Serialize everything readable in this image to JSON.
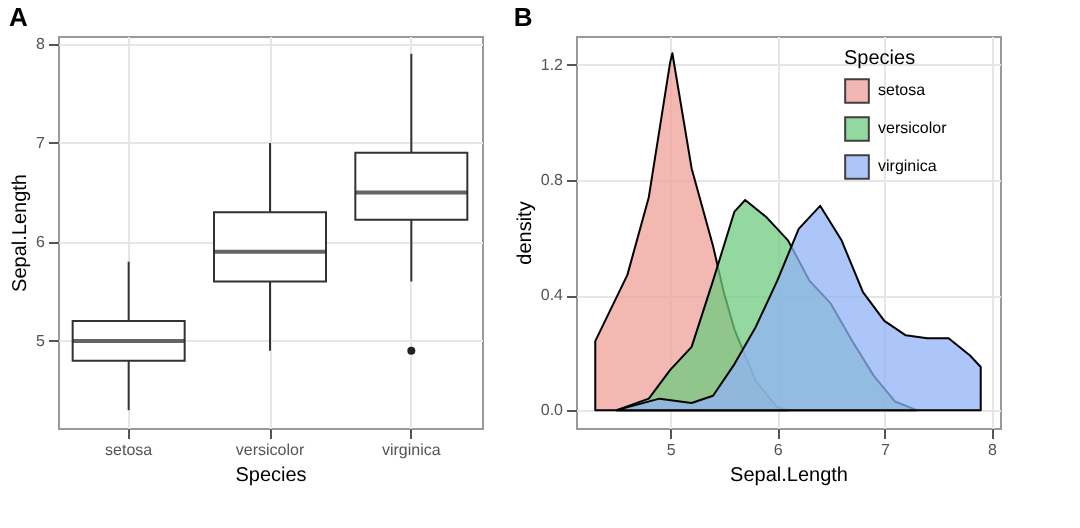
{
  "chart_data": [
    {
      "type": "box",
      "title": "A",
      "xlabel": "Species",
      "ylabel": "Sepal.Length",
      "categories": [
        "setosa",
        "versicolor",
        "virginica"
      ],
      "boxes": [
        {
          "low": 4.3,
          "q1": 4.8,
          "median": 5.0,
          "q3": 5.2,
          "high": 5.8
        },
        {
          "low": 4.9,
          "q1": 5.6,
          "median": 5.9,
          "q3": 6.3,
          "high": 7.0
        },
        {
          "low": 5.6,
          "q1": 6.225,
          "median": 6.5,
          "q3": 6.9,
          "high": 7.9,
          "outliers": [
            4.9
          ]
        }
      ],
      "ylim": [
        4.12,
        8.08
      ],
      "yticks": [
        5,
        6,
        7,
        8
      ],
      "grid": true
    },
    {
      "type": "area",
      "title": "B",
      "xlabel": "Sepal.Length",
      "ylabel": "density",
      "legend_title": "Species",
      "legend": "top right",
      "series": [
        {
          "name": "setosa",
          "color": "#f0a09a",
          "x": [
            4.3,
            4.6,
            4.8,
            5.0,
            5.02,
            5.2,
            5.4,
            5.5,
            5.6,
            5.8,
            6.0,
            6.1
          ],
          "values": [
            0.24,
            0.47,
            0.74,
            1.21,
            1.24,
            0.84,
            0.57,
            0.41,
            0.28,
            0.1,
            0.01,
            0
          ]
        },
        {
          "name": "versicolor",
          "color": "#6fcb7e",
          "x": [
            4.5,
            4.8,
            5.0,
            5.2,
            5.4,
            5.6,
            5.7,
            5.9,
            6.1,
            6.3,
            6.5,
            6.7,
            6.9,
            7.1,
            7.3
          ],
          "values": [
            0,
            0.04,
            0.14,
            0.22,
            0.45,
            0.69,
            0.73,
            0.67,
            0.59,
            0.45,
            0.37,
            0.24,
            0.12,
            0.03,
            0
          ]
        },
        {
          "name": "virginica",
          "color": "#92b3f7",
          "x": [
            4.5,
            4.9,
            5.2,
            5.4,
            5.6,
            5.8,
            6.0,
            6.2,
            6.4,
            6.6,
            6.8,
            7.0,
            7.2,
            7.4,
            7.6,
            7.8,
            7.9
          ],
          "values": [
            0,
            0.04,
            0.025,
            0.05,
            0.16,
            0.29,
            0.45,
            0.63,
            0.71,
            0.59,
            0.41,
            0.31,
            0.26,
            0.25,
            0.25,
            0.19,
            0.15
          ]
        }
      ],
      "xlim": [
        4.12,
        8.08
      ],
      "xticks": [
        5,
        6,
        7,
        8
      ],
      "ylim": [
        -0.062,
        1.3
      ],
      "yticks": [
        {
          "value": 0,
          "label": "0.0"
        },
        0.4,
        0.8,
        1.2
      ],
      "grid": true
    }
  ]
}
